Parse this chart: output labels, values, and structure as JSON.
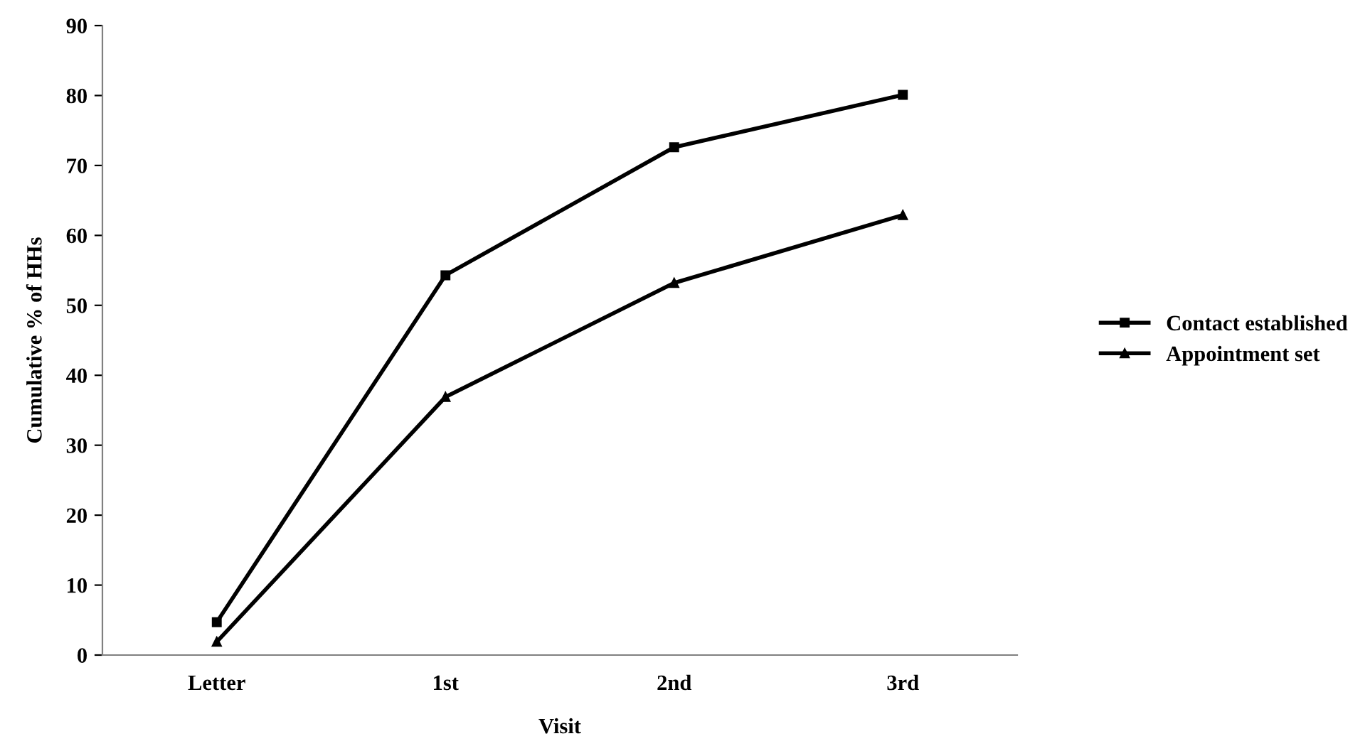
{
  "chart_data": {
    "type": "line",
    "xlabel": "Visit",
    "ylabel": "Cumulative % of HHs",
    "categories": [
      "Letter",
      "1st",
      "2nd",
      "3rd"
    ],
    "series": [
      {
        "name": "Contact established",
        "color": "#000000",
        "marker": "square",
        "values": [
          4.7,
          54.3,
          72.6,
          80.1
        ]
      },
      {
        "name": "Appointment set",
        "color": "#000000",
        "marker": "triangle",
        "values": [
          1.9,
          36.9,
          53.2,
          62.9
        ]
      }
    ],
    "ylim": [
      0,
      90
    ],
    "yticks": [
      0,
      10,
      20,
      30,
      40,
      50,
      60,
      70,
      80,
      90
    ],
    "grid": false,
    "legend": "right",
    "line_style": "solid"
  }
}
